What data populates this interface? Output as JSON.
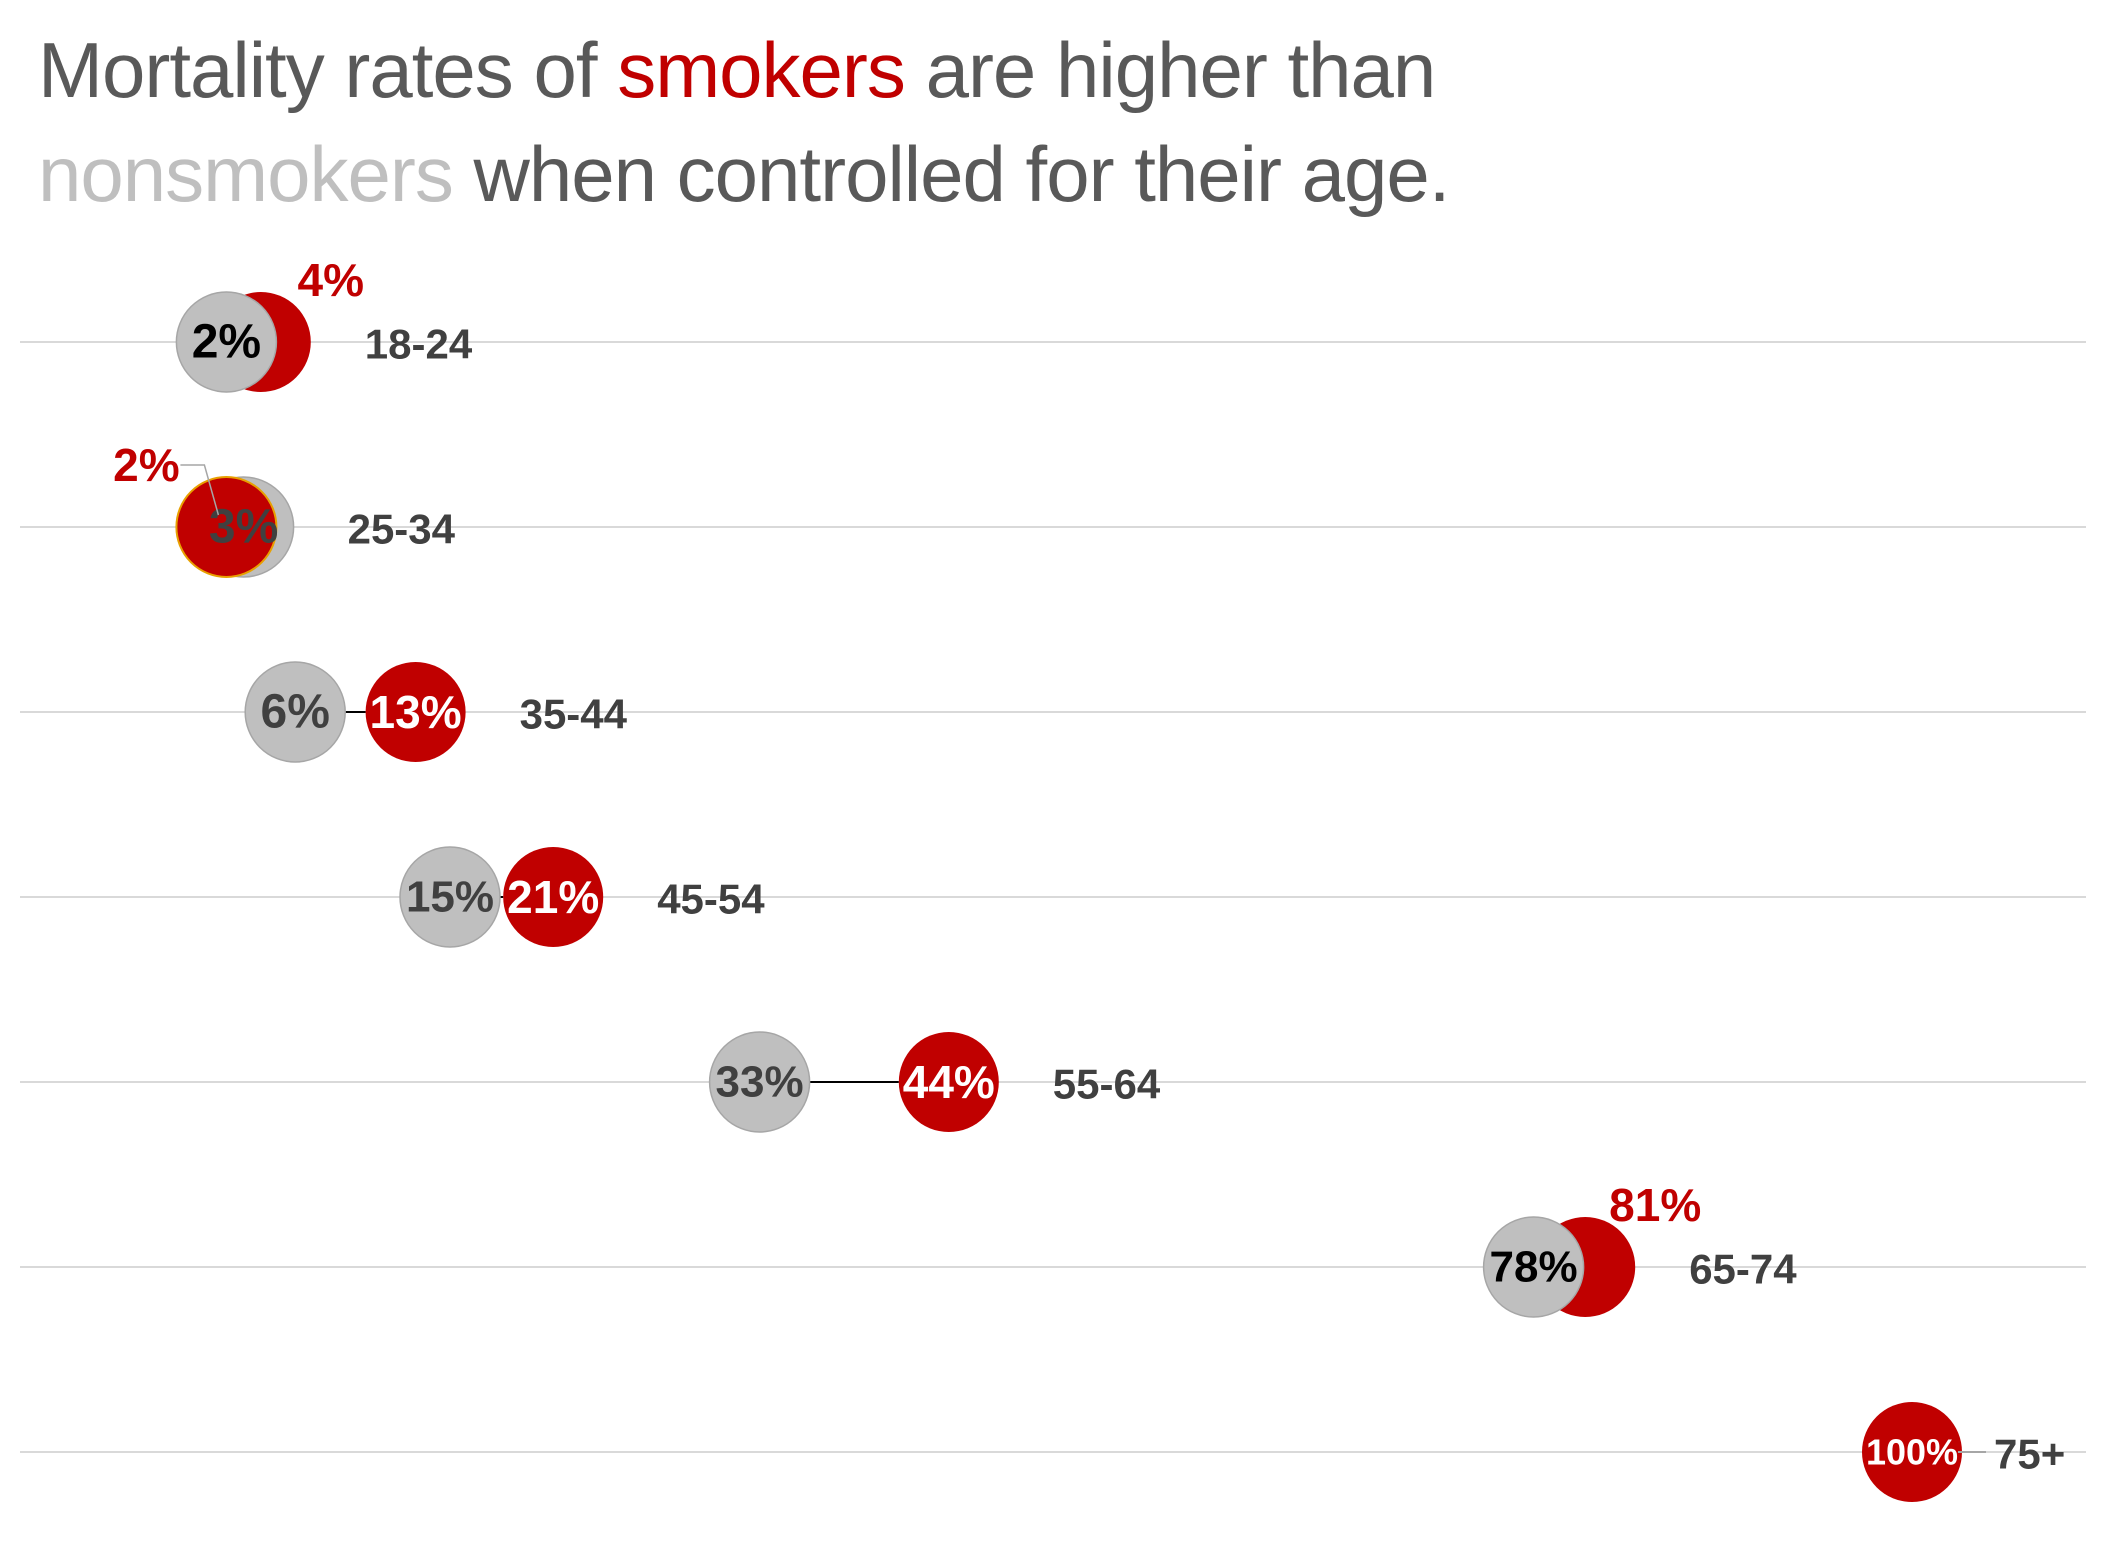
{
  "title": {
    "part1": "Mortality rates of ",
    "smokers": "smokers",
    "part2": " are higher than",
    "nonsmokers": "nonsmokers",
    "part3": " when controlled for their age."
  },
  "colors": {
    "smokers": "#c00000",
    "nonsmokers": "#bfbfbf",
    "title_text": "#595959",
    "gridline": "#d9d9d9",
    "age_label": "#404040"
  },
  "chart_data": {
    "type": "scatter",
    "title": "Mortality rates of smokers are higher than nonsmokers when controlled for their age.",
    "xlabel": "",
    "ylabel": "",
    "xlim": [
      -6,
      100
    ],
    "grid": true,
    "legend": "none",
    "categories": [
      "18-24",
      "25-34",
      "35-44",
      "45-54",
      "55-64",
      "65-74",
      "75+"
    ],
    "series": [
      {
        "name": "smokers",
        "values": [
          4,
          2,
          13,
          21,
          44,
          81,
          100
        ],
        "labels": [
          "4%",
          "2%",
          "13%",
          "21%",
          "44%",
          "81%",
          "100%"
        ]
      },
      {
        "name": "nonsmokers",
        "values": [
          2,
          3,
          6,
          15,
          33,
          78,
          null
        ],
        "labels": [
          "2%",
          "3%",
          "6%",
          "15%",
          "33%",
          "78%",
          ""
        ]
      }
    ]
  }
}
